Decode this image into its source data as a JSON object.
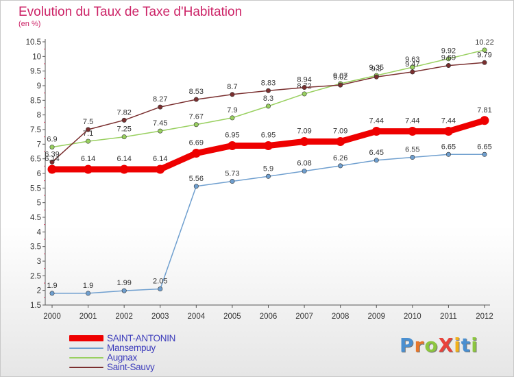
{
  "title": "Evolution du Taux de Taxe d'Habitation",
  "subtitle": "(en %)",
  "logo": {
    "text": "ProXiti",
    "letters": [
      {
        "ch": "P",
        "color": "#4a8fd0"
      },
      {
        "ch": "r",
        "color": "#e8772b"
      },
      {
        "ch": "o",
        "color": "#8cc63f"
      },
      {
        "ch": "X",
        "color": "#e8423b"
      },
      {
        "ch": "i",
        "color": "#f2b11b"
      },
      {
        "ch": "t",
        "color": "#4a8fd0"
      },
      {
        "ch": "i",
        "color": "#8cc63f"
      }
    ]
  },
  "chart_data": {
    "type": "line",
    "categories": [
      "2000",
      "2001",
      "2002",
      "2003",
      "2004",
      "2005",
      "2006",
      "2007",
      "2008",
      "2009",
      "2010",
      "2011",
      "2012"
    ],
    "ylim": [
      1.5,
      10.5
    ],
    "yticks": [
      "1.5",
      "2",
      "2.5",
      "3",
      "3.5",
      "4",
      "4.5",
      "5",
      "5.5",
      "6",
      "6.5",
      "7",
      "7.5",
      "8",
      "8.5",
      "9",
      "9.5",
      "10",
      "10.5"
    ],
    "grid": false,
    "legend_position": "bottom-left",
    "series": [
      {
        "name": "SAINT-ANTONIN",
        "color": "#ee0000",
        "emphasis": true,
        "values": [
          6.14,
          6.14,
          6.14,
          6.14,
          6.69,
          6.95,
          6.95,
          7.09,
          7.09,
          7.44,
          7.44,
          7.44,
          7.81
        ],
        "labels": [
          "6.14",
          "6.14",
          "6.14",
          "6.14",
          "6.69",
          "6.95",
          "6.95",
          "7.09",
          "7.09",
          "7.44",
          "7.44",
          "7.44",
          "7.81"
        ]
      },
      {
        "name": "Mansempuy",
        "color": "#6f9fcf",
        "values": [
          1.9,
          1.9,
          1.99,
          2.05,
          5.56,
          5.73,
          5.9,
          6.08,
          6.26,
          6.45,
          6.55,
          6.65,
          6.65
        ],
        "labels": [
          "1.9",
          "1.9",
          "1.99",
          "2.05",
          "5.56",
          "5.73",
          "5.9",
          "6.08",
          "6.26",
          "6.45",
          "6.55",
          "6.65",
          "6.65"
        ]
      },
      {
        "name": "Augnax",
        "color": "#99d060",
        "values": [
          6.9,
          7.1,
          7.25,
          7.45,
          7.67,
          7.9,
          8.3,
          8.72,
          9.07,
          9.35,
          9.63,
          9.92,
          10.22
        ],
        "labels": [
          "6.9",
          "7.1",
          "7.25",
          "7.45",
          "7.67",
          "7.9",
          "8.3",
          "8.72",
          "9.07",
          "9.35",
          "9.63",
          "9.92",
          "10.22"
        ]
      },
      {
        "name": "Saint-Sauvy",
        "color": "#7a2f2f",
        "values": [
          6.39,
          7.5,
          7.82,
          8.27,
          8.53,
          8.7,
          8.83,
          8.94,
          9.02,
          9.3,
          9.47,
          9.69,
          9.79
        ],
        "labels": [
          "6.39",
          "7.5",
          "7.82",
          "8.27",
          "8.53",
          "8.7",
          "8.83",
          "8.94",
          "9.02",
          "9.3",
          "9.47",
          "9.69",
          "9.79"
        ]
      }
    ]
  }
}
